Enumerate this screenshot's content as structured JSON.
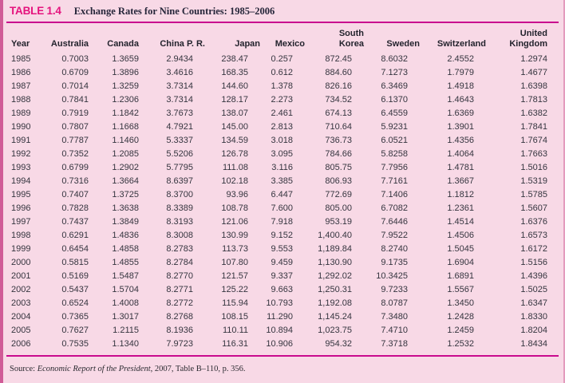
{
  "page": {
    "table_label": "TABLE 1.4",
    "table_title": "Exchange Rates for Nine Countries: 1985–2006",
    "source_prefix": "Source: ",
    "source_book": "Economic Report of the President",
    "source_suffix": ", 2007, Table B–110, p. 356."
  },
  "colors": {
    "background_pink": "#f8d9e6",
    "rule_magenta": "#c90a8e",
    "label_magenta": "#e5127d",
    "left_border_rose": "#d05b97",
    "text_dark": "#32323c"
  },
  "table": {
    "headers": [
      {
        "label": "Year"
      },
      {
        "label": "Australia"
      },
      {
        "label": "Canada"
      },
      {
        "label": "China P. R."
      },
      {
        "label": "Japan"
      },
      {
        "label": "Mexico"
      },
      {
        "top": "South",
        "label": "Korea"
      },
      {
        "label": "Sweden"
      },
      {
        "label": "Switzerland"
      },
      {
        "top": "United",
        "label": "Kingdom"
      }
    ],
    "rows": [
      [
        "1985",
        "0.7003",
        "1.3659",
        "2.9434",
        "238.47",
        "0.257",
        "872.45",
        "8.6032",
        "2.4552",
        "1.2974"
      ],
      [
        "1986",
        "0.6709",
        "1.3896",
        "3.4616",
        "168.35",
        "0.612",
        "884.60",
        "7.1273",
        "1.7979",
        "1.4677"
      ],
      [
        "1987",
        "0.7014",
        "1.3259",
        "3.7314",
        "144.60",
        "1.378",
        "826.16",
        "6.3469",
        "1.4918",
        "1.6398"
      ],
      [
        "1988",
        "0.7841",
        "1.2306",
        "3.7314",
        "128.17",
        "2.273",
        "734.52",
        "6.1370",
        "1.4643",
        "1.7813"
      ],
      [
        "1989",
        "0.7919",
        "1.1842",
        "3.7673",
        "138.07",
        "2.461",
        "674.13",
        "6.4559",
        "1.6369",
        "1.6382"
      ],
      [
        "1990",
        "0.7807",
        "1.1668",
        "4.7921",
        "145.00",
        "2.813",
        "710.64",
        "5.9231",
        "1.3901",
        "1.7841"
      ],
      [
        "1991",
        "0.7787",
        "1.1460",
        "5.3337",
        "134.59",
        "3.018",
        "736.73",
        "6.0521",
        "1.4356",
        "1.7674"
      ],
      [
        "1992",
        "0.7352",
        "1.2085",
        "5.5206",
        "126.78",
        "3.095",
        "784.66",
        "5.8258",
        "1.4064",
        "1.7663"
      ],
      [
        "1993",
        "0.6799",
        "1.2902",
        "5.7795",
        "111.08",
        "3.116",
        "805.75",
        "7.7956",
        "1.4781",
        "1.5016"
      ],
      [
        "1994",
        "0.7316",
        "1.3664",
        "8.6397",
        "102.18",
        "3.385",
        "806.93",
        "7.7161",
        "1.3667",
        "1.5319"
      ],
      [
        "1995",
        "0.7407",
        "1.3725",
        "8.3700",
        "93.96",
        "6.447",
        "772.69",
        "7.1406",
        "1.1812",
        "1.5785"
      ],
      [
        "1996",
        "0.7828",
        "1.3638",
        "8.3389",
        "108.78",
        "7.600",
        "805.00",
        "6.7082",
        "1.2361",
        "1.5607"
      ],
      [
        "1997",
        "0.7437",
        "1.3849",
        "8.3193",
        "121.06",
        "7.918",
        "953.19",
        "7.6446",
        "1.4514",
        "1.6376"
      ],
      [
        "1998",
        "0.6291",
        "1.4836",
        "8.3008",
        "130.99",
        "9.152",
        "1,400.40",
        "7.9522",
        "1.4506",
        "1.6573"
      ],
      [
        "1999",
        "0.6454",
        "1.4858",
        "8.2783",
        "113.73",
        "9.553",
        "1,189.84",
        "8.2740",
        "1.5045",
        "1.6172"
      ],
      [
        "2000",
        "0.5815",
        "1.4855",
        "8.2784",
        "107.80",
        "9.459",
        "1,130.90",
        "9.1735",
        "1.6904",
        "1.5156"
      ],
      [
        "2001",
        "0.5169",
        "1.5487",
        "8.2770",
        "121.57",
        "9.337",
        "1,292.02",
        "10.3425",
        "1.6891",
        "1.4396"
      ],
      [
        "2002",
        "0.5437",
        "1.5704",
        "8.2771",
        "125.22",
        "9.663",
        "1,250.31",
        "9.7233",
        "1.5567",
        "1.5025"
      ],
      [
        "2003",
        "0.6524",
        "1.4008",
        "8.2772",
        "115.94",
        "10.793",
        "1,192.08",
        "8.0787",
        "1.3450",
        "1.6347"
      ],
      [
        "2004",
        "0.7365",
        "1.3017",
        "8.2768",
        "108.15",
        "11.290",
        "1,145.24",
        "7.3480",
        "1.2428",
        "1.8330"
      ],
      [
        "2005",
        "0.7627",
        "1.2115",
        "8.1936",
        "110.11",
        "10.894",
        "1,023.75",
        "7.4710",
        "1.2459",
        "1.8204"
      ],
      [
        "2006",
        "0.7535",
        "1.1340",
        "7.9723",
        "116.31",
        "10.906",
        "954.32",
        "7.3718",
        "1.2532",
        "1.8434"
      ]
    ]
  }
}
